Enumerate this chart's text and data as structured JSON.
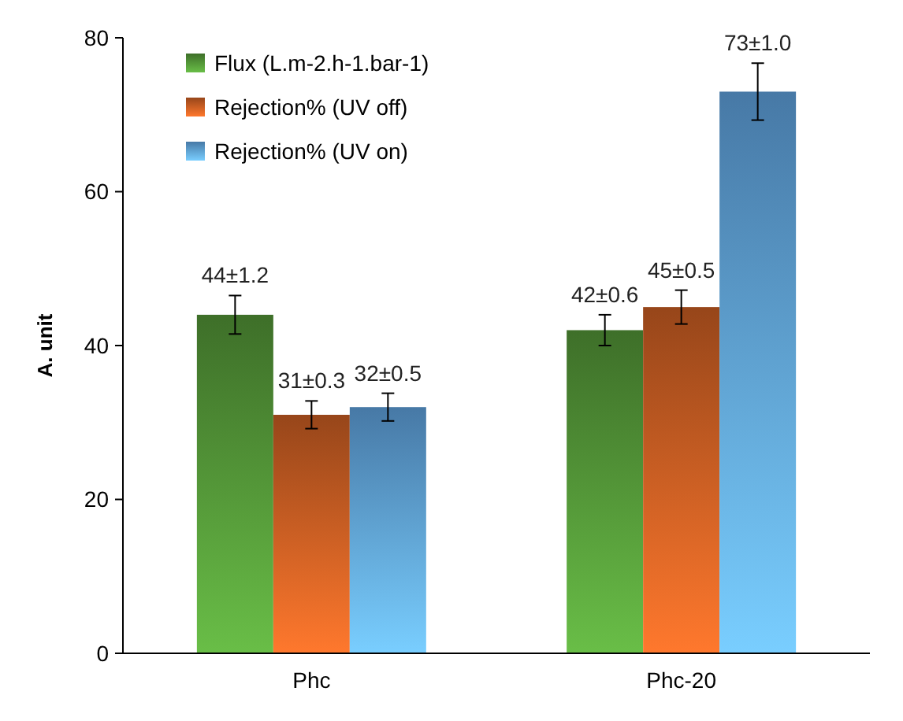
{
  "chart_data": {
    "type": "bar",
    "ylabel": "A. unit",
    "categories": [
      "Phc",
      "Phc-20"
    ],
    "series": [
      {
        "name": "Flux (L.m-2.h-1.bar-1)",
        "color": "#4f8f35",
        "values": [
          44,
          42
        ],
        "errors": [
          2.5,
          2
        ],
        "value_labels": [
          "44±1.2",
          "42±0.6"
        ]
      },
      {
        "name": "Rejection% (UV off)",
        "color": "#c25a22",
        "values": [
          31,
          45
        ],
        "errors": [
          1.8,
          2.2
        ],
        "value_labels": [
          "31±0.3",
          "45±0.5"
        ]
      },
      {
        "name": "Rejection% (UV on)",
        "color": "#5b9bd5",
        "values": [
          32,
          73
        ],
        "errors": [
          1.8,
          3.7
        ],
        "value_labels": [
          "32±0.5",
          "73±1.0"
        ]
      }
    ],
    "ylim": [
      0,
      80
    ],
    "yticks": [
      0,
      20,
      40,
      60,
      80
    ],
    "grid": false,
    "legend": "top left"
  }
}
